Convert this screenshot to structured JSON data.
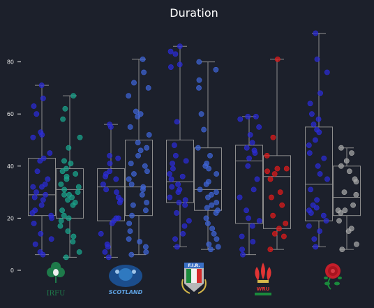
{
  "chart_data": {
    "type": "box",
    "title": "Duration",
    "xlabel": "",
    "ylabel": "",
    "yticks": [
      0,
      20,
      40,
      60,
      80
    ],
    "ylim": [
      0,
      93
    ],
    "grid": false,
    "teams": [
      {
        "logo_text": "IRFU",
        "groups": [
          {
            "color": "#2b2bd6",
            "box": {
              "min": 6,
              "q1": 21,
              "median": 29,
              "q3": 43,
              "max": 71
            },
            "points": [
              71,
              66,
              63,
              60,
              53,
              52,
              51,
              45,
              43,
              42,
              38,
              35,
              33,
              32,
              32,
              30,
              29,
              28,
              27,
              25,
              23,
              22,
              21,
              20,
              18,
              14,
              12,
              10,
              7,
              6
            ]
          },
          {
            "color": "#1aa58c",
            "box": {
              "min": 5,
              "q1": 20,
              "median": 31,
              "q3": 39,
              "max": 67
            },
            "points": [
              67,
              62,
              58,
              51,
              47,
              42,
              41,
              39,
              38,
              37,
              36,
              35,
              33,
              32,
              31,
              30,
              29,
              29,
              28,
              27,
              26,
              25,
              23,
              21,
              20,
              19,
              17,
              15,
              13,
              11,
              7,
              5
            ]
          }
        ]
      },
      {
        "logo_text": "SCOTLAND",
        "groups": [
          {
            "color": "#2b2bd6",
            "box": {
              "min": 5,
              "q1": 19,
              "median": 32,
              "q3": 39,
              "max": 56
            },
            "points": [
              56,
              55,
              44,
              43,
              41,
              38,
              37,
              36,
              35,
              33,
              31,
              30,
              28,
              27,
              26,
              20,
              20,
              19,
              18,
              14,
              10,
              9,
              7,
              5
            ]
          },
          {
            "color": "#3f64d6",
            "box": {
              "min": 6,
              "q1": 21,
              "median": 32,
              "q3": 50,
              "max": 81
            },
            "points": [
              81,
              76,
              72,
              70,
              67,
              61,
              60,
              59,
              55,
              52,
              49,
              47,
              46,
              44,
              41,
              40,
              38,
              37,
              35,
              33,
              32,
              31,
              29,
              26,
              25,
              23,
              21,
              18,
              15,
              12,
              11,
              9,
              7,
              6
            ]
          }
        ]
      },
      {
        "logo_text": "F.I.R.",
        "groups": [
          {
            "color": "#2b2bd6",
            "box": {
              "min": 9,
              "q1": 26,
              "median": 34,
              "q3": 50,
              "max": 86
            },
            "points": [
              86,
              84,
              83,
              79,
              78,
              57,
              48,
              44,
              42,
              41,
              39,
              37,
              36,
              35,
              33,
              32,
              31,
              30,
              28,
              27,
              26,
              25,
              22,
              19,
              17,
              14,
              12,
              9
            ]
          },
          {
            "color": "#3f64d6",
            "box": {
              "min": 8,
              "q1": 23,
              "median": 31,
              "q3": 47,
              "max": 80
            },
            "points": [
              80,
              77,
              73,
              70,
              60,
              54,
              47,
              44,
              41,
              40,
              39,
              37,
              34,
              33,
              31,
              30,
              29,
              28,
              26,
              25,
              24,
              23,
              22,
              20,
              18,
              16,
              14,
              12,
              10,
              9,
              8
            ]
          }
        ]
      },
      {
        "logo_text": "WRU",
        "groups": [
          {
            "color": "#2b2bd6",
            "box": {
              "min": 6,
              "q1": 18,
              "median": 42,
              "q3": 48,
              "max": 59
            },
            "points": [
              59,
              59,
              58,
              55,
              52,
              49,
              47,
              46,
              45,
              43,
              40,
              35,
              31,
              28,
              23,
              20,
              19,
              17,
              13,
              11,
              8,
              6
            ]
          },
          {
            "color": "#e01a1a",
            "box": {
              "min": 8,
              "q1": 16,
              "median": 36,
              "q3": 44,
              "max": 81
            },
            "points": [
              81,
              51,
              44,
              39,
              39,
              38,
              37,
              35,
              30,
              28,
              25,
              21,
              18,
              16,
              14,
              13,
              8
            ]
          }
        ]
      },
      {
        "logo_text": "",
        "groups": [
          {
            "color": "#2b2bd6",
            "box": {
              "min": 9,
              "q1": 19,
              "median": 33,
              "q3": 55,
              "max": 91
            },
            "points": [
              91,
              81,
              76,
              68,
              64,
              60,
              58,
              56,
              54,
              53,
              50,
              48,
              45,
              43,
              40,
              37,
              35,
              31,
              27,
              25,
              24,
              23,
              22,
              21,
              19,
              17,
              15,
              12,
              9
            ]
          },
          {
            "color": "#a6a6a6",
            "box": {
              "min": 8,
              "q1": 21,
              "median": 28,
              "q3": 40,
              "max": 47
            },
            "points": [
              47,
              45,
              42,
              40,
              38,
              35,
              34,
              30,
              29,
              25,
              23,
              23,
              22,
              19,
              16,
              15,
              10,
              8
            ]
          }
        ]
      }
    ]
  }
}
